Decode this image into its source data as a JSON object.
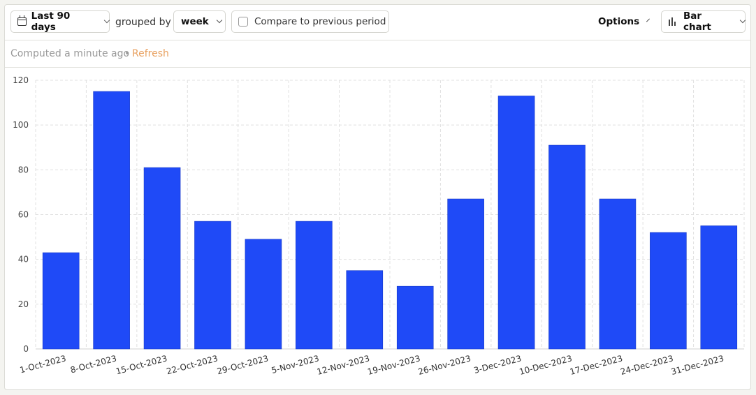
{
  "toolbar": {
    "date_range_label": "Last 90 days",
    "grouped_by_text": "grouped by",
    "interval_label": "week",
    "compare_label": "Compare to previous period",
    "options_label": "Options",
    "chart_type_label": "Bar chart"
  },
  "status": {
    "computed_text": "Computed a minute ago",
    "separator": "•",
    "refresh_label": "Refresh"
  },
  "colors": {
    "bar": "#1f4af7",
    "accent": "#e8a160"
  },
  "chart_data": {
    "type": "bar",
    "categories": [
      "1-Oct-2023",
      "8-Oct-2023",
      "15-Oct-2023",
      "22-Oct-2023",
      "29-Oct-2023",
      "5-Nov-2023",
      "12-Nov-2023",
      "19-Nov-2023",
      "26-Nov-2023",
      "3-Dec-2023",
      "10-Dec-2023",
      "17-Dec-2023",
      "24-Dec-2023",
      "31-Dec-2023"
    ],
    "values": [
      43,
      115,
      81,
      57,
      49,
      57,
      35,
      28,
      67,
      113,
      91,
      67,
      52,
      55
    ],
    "yticks": [
      0,
      20,
      40,
      60,
      80,
      100,
      120
    ],
    "ylim": [
      0,
      120
    ],
    "grid": true
  }
}
